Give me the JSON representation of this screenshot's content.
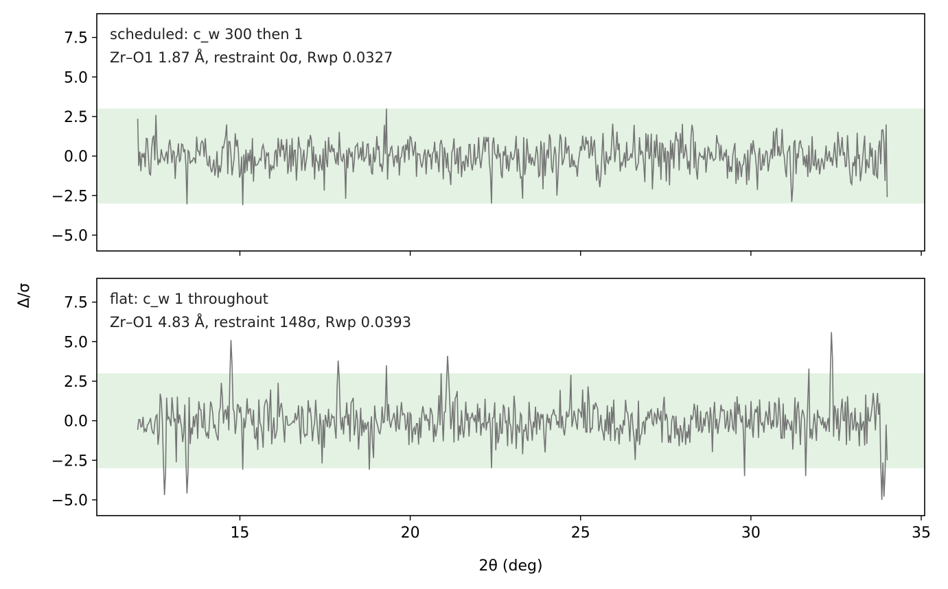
{
  "figure": {
    "xlabel": "2θ (deg)",
    "ylabel": "Δ/σ",
    "band_color": "#e3f2e3",
    "line_color": "#747474"
  },
  "chart_data": [
    {
      "type": "line",
      "panel": "top",
      "annotation": [
        "scheduled: c_w 300 then 1",
        "Zr–O1 1.87 Å, restraint 0σ, Rwp 0.0327"
      ],
      "xlim": [
        10.8,
        35.1
      ],
      "ylim": [
        -6.0,
        9.0
      ],
      "yticks": [
        7.5,
        5.0,
        2.5,
        0.0,
        -2.5,
        -5.0
      ],
      "ytick_labels": [
        "7.5",
        "5.0",
        "2.5",
        "0.0",
        "−2.5",
        "−5.0"
      ],
      "xticks": [
        15,
        20,
        25,
        30,
        35
      ],
      "xtick_labels": [],
      "band": [
        -3.0,
        3.0
      ],
      "series": [
        {
          "x_start": 12.0,
          "x_end": 34.0,
          "n_points": 700,
          "noise_sd": 1.0,
          "peaks": [
            [
              12.55,
              2.6
            ],
            [
              14.6,
              2.0
            ],
            [
              15.1,
              -3.1
            ],
            [
              13.45,
              -3.05
            ],
            [
              19.3,
              3.0
            ],
            [
              22.4,
              -3.0
            ],
            [
              31.2,
              -2.9
            ],
            [
              24.3,
              -2.5
            ]
          ],
          "end_value": -2.6
        }
      ]
    },
    {
      "type": "line",
      "panel": "bottom",
      "annotation": [
        "flat: c_w 1 throughout",
        "Zr–O1 4.83 Å, restraint 148σ, Rwp 0.0393"
      ],
      "xlim": [
        10.8,
        35.1
      ],
      "ylim": [
        -6.0,
        9.0
      ],
      "yticks": [
        7.5,
        5.0,
        2.5,
        0.0,
        -2.5,
        -5.0
      ],
      "ytick_labels": [
        "7.5",
        "5.0",
        "2.5",
        "0.0",
        "−2.5",
        "−5.0"
      ],
      "xticks": [
        15,
        20,
        25,
        30,
        35
      ],
      "xtick_labels": [
        "15",
        "20",
        "25",
        "30",
        "35"
      ],
      "band": [
        -3.0,
        3.0
      ],
      "series": [
        {
          "x_start": 12.0,
          "x_end": 34.0,
          "n_points": 700,
          "noise_sd": 1.0,
          "peaks": [
            [
              12.8,
              -4.7
            ],
            [
              13.45,
              -4.6
            ],
            [
              14.75,
              5.1
            ],
            [
              15.1,
              -3.1
            ],
            [
              17.9,
              3.8
            ],
            [
              18.8,
              -3.1
            ],
            [
              19.3,
              3.5
            ],
            [
              20.9,
              3.0
            ],
            [
              21.1,
              4.1
            ],
            [
              22.4,
              -3.0
            ],
            [
              24.7,
              2.9
            ],
            [
              29.8,
              -3.5
            ],
            [
              31.7,
              3.3
            ],
            [
              31.6,
              -3.5
            ],
            [
              32.35,
              5.6
            ],
            [
              33.85,
              -5.0
            ],
            [
              33.9,
              -4.8
            ]
          ],
          "end_value": -2.5
        }
      ]
    }
  ]
}
